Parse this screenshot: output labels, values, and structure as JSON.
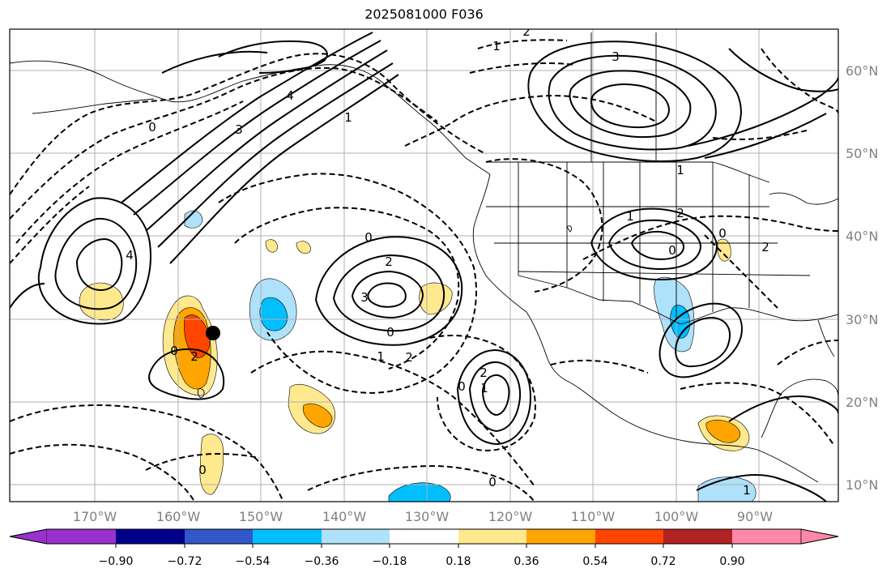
{
  "title": "2025081000 F036",
  "map": {
    "lon_labels": [
      "170°W",
      "160°W",
      "150°W",
      "140°W",
      "130°W",
      "120°W",
      "110°W",
      "100°W",
      "90°W"
    ],
    "lat_labels": [
      "60°N",
      "50°N",
      "40°N",
      "30°N",
      "20°N",
      "10°N"
    ],
    "contour_labels": [
      "1",
      "2",
      "3",
      "4",
      "0",
      "1",
      "2",
      "3",
      "4",
      "0",
      "1",
      "2",
      "0",
      "2",
      "1",
      "0",
      "2",
      "1",
      "0",
      "1",
      "2",
      "0",
      "3",
      "0",
      "1",
      "0",
      "2",
      "0"
    ],
    "marker": "storm-center-dot"
  },
  "colorbar": {
    "colors": [
      "#9932cc",
      "#00008b",
      "#3158c8",
      "#00bfff",
      "#aee1fa",
      "#ffffff",
      "#ffe98e",
      "#ffa500",
      "#ff4500",
      "#b22222",
      "#ff88aa"
    ],
    "labels": [
      "−0.90",
      "−0.72",
      "−0.54",
      "−0.36",
      "−0.18",
      "0.18",
      "0.36",
      "0.54",
      "0.72",
      "0.90"
    ]
  }
}
